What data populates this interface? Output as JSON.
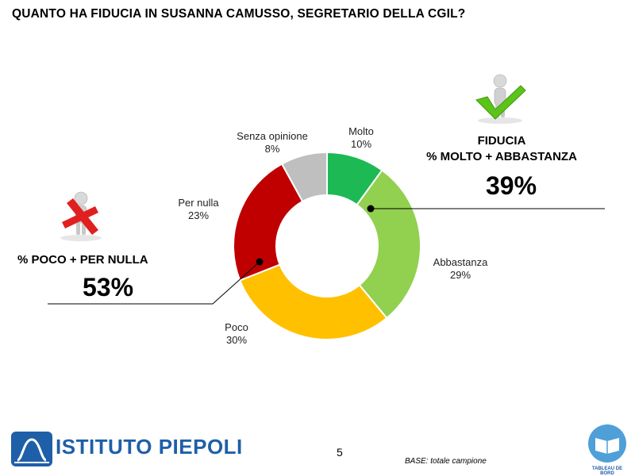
{
  "title": "QUANTO HA FIDUCIA IN SUSANNA CAMUSSO, SEGRETARIO DELLA CGIL?",
  "chart_data": {
    "type": "pie",
    "donut": true,
    "categories": [
      "Molto",
      "Abbastanza",
      "Poco",
      "Per nulla",
      "Senza opinione"
    ],
    "values": [
      10,
      29,
      30,
      23,
      8
    ],
    "value_labels": [
      "10%",
      "29%",
      "30%",
      "23%",
      "8%"
    ],
    "colors": [
      "#1db954",
      "#92d050",
      "#ffc000",
      "#c00000",
      "#bfbfbf"
    ]
  },
  "callouts": {
    "positive": {
      "line1": "FIDUCIA",
      "line2": "% MOLTO + ABBASTANZA",
      "value": "39%"
    },
    "negative": {
      "line1": "% POCO + PER NULLA",
      "value": "53%"
    }
  },
  "footer": {
    "logo_text": "ISTITUTO PIEPOLI",
    "page_number": "5",
    "base_note": "BASE: totale campione",
    "badge_text": "TABLEAU DE BORD"
  }
}
